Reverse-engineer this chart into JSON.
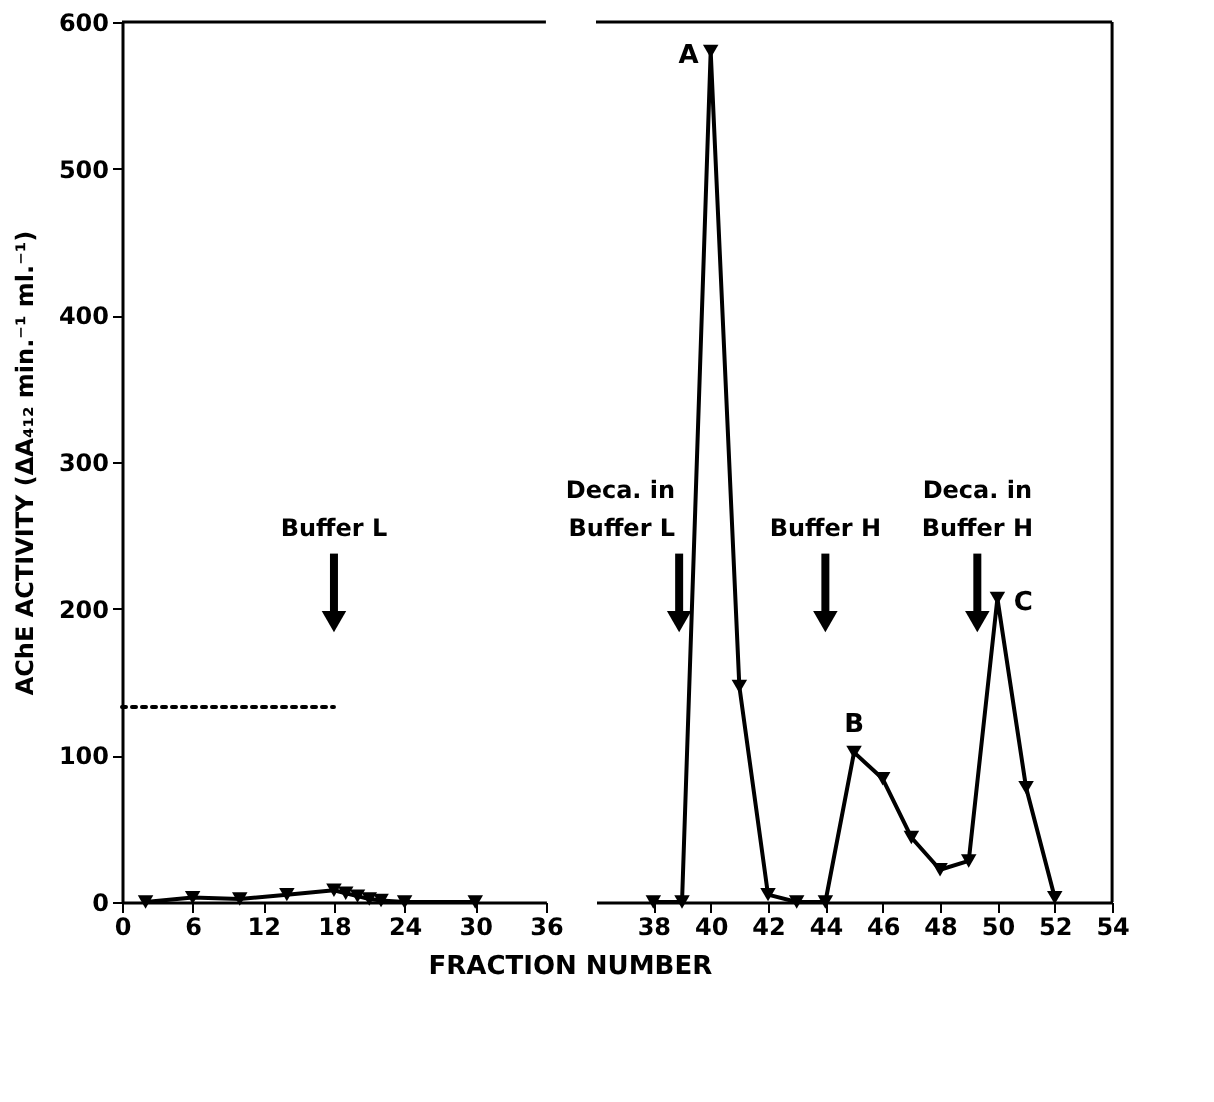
{
  "chart_data": [
    {
      "type": "line",
      "xlabel": "FRACTION NUMBER",
      "ylabel": "AChE ACTIVITY (ΔA₄₁₂ min.⁻¹ ml.⁻¹)",
      "xlim": [
        0,
        36
      ],
      "ylim": [
        0,
        600
      ],
      "xticks": [
        0,
        6,
        12,
        18,
        24,
        30,
        36
      ],
      "yticks": [
        0,
        100,
        200,
        300,
        400,
        500,
        600
      ],
      "grid": false,
      "series": [
        {
          "color": "#000000",
          "marker": "triangle",
          "line_style": "solid",
          "x": [
            2,
            6,
            10,
            14,
            18,
            19,
            20,
            21,
            22,
            24,
            30
          ],
          "values": [
            0,
            3,
            2,
            5,
            8,
            6,
            4,
            2,
            1,
            0,
            0
          ]
        },
        {
          "color": "#000000",
          "marker": "none",
          "line_style": "dotted",
          "x": [
            0,
            18
          ],
          "values": [
            133,
            133
          ]
        }
      ],
      "ref_lines": [
        {
          "axis": "x",
          "value": 18,
          "label": "Buffer L"
        }
      ]
    },
    {
      "type": "line",
      "xlim": [
        36,
        54
      ],
      "ylim": [
        0,
        600
      ],
      "xticks": [
        38,
        40,
        42,
        44,
        46,
        48,
        50,
        52,
        54
      ],
      "yticks": [
        0,
        100,
        200,
        300,
        400,
        500,
        600
      ],
      "tick_labels": "x",
      "grid": false,
      "series": [
        {
          "color": "#000000",
          "marker": "triangle",
          "line_style": "solid",
          "x": [
            38,
            39,
            40,
            41,
            42,
            43,
            44,
            45,
            46,
            47,
            48,
            49,
            50,
            51,
            52
          ],
          "values": [
            0,
            0,
            580,
            147,
            5,
            0,
            0,
            102,
            84,
            44,
            22,
            28,
            207,
            78,
            3
          ]
        }
      ],
      "ref_lines": [
        {
          "axis": "x",
          "value": 38.9,
          "label": "Deca. in\nBuffer L"
        },
        {
          "axis": "x",
          "value": 44,
          "label": "Buffer H"
        },
        {
          "axis": "x",
          "value": 49.3,
          "label": "Deca. in\nBuffer H"
        }
      ],
      "annotations": [
        {
          "text": "A",
          "x": 40,
          "y": 580
        },
        {
          "text": "B",
          "x": 45,
          "y": 102
        },
        {
          "text": "C",
          "x": 50,
          "y": 207
        }
      ]
    }
  ]
}
